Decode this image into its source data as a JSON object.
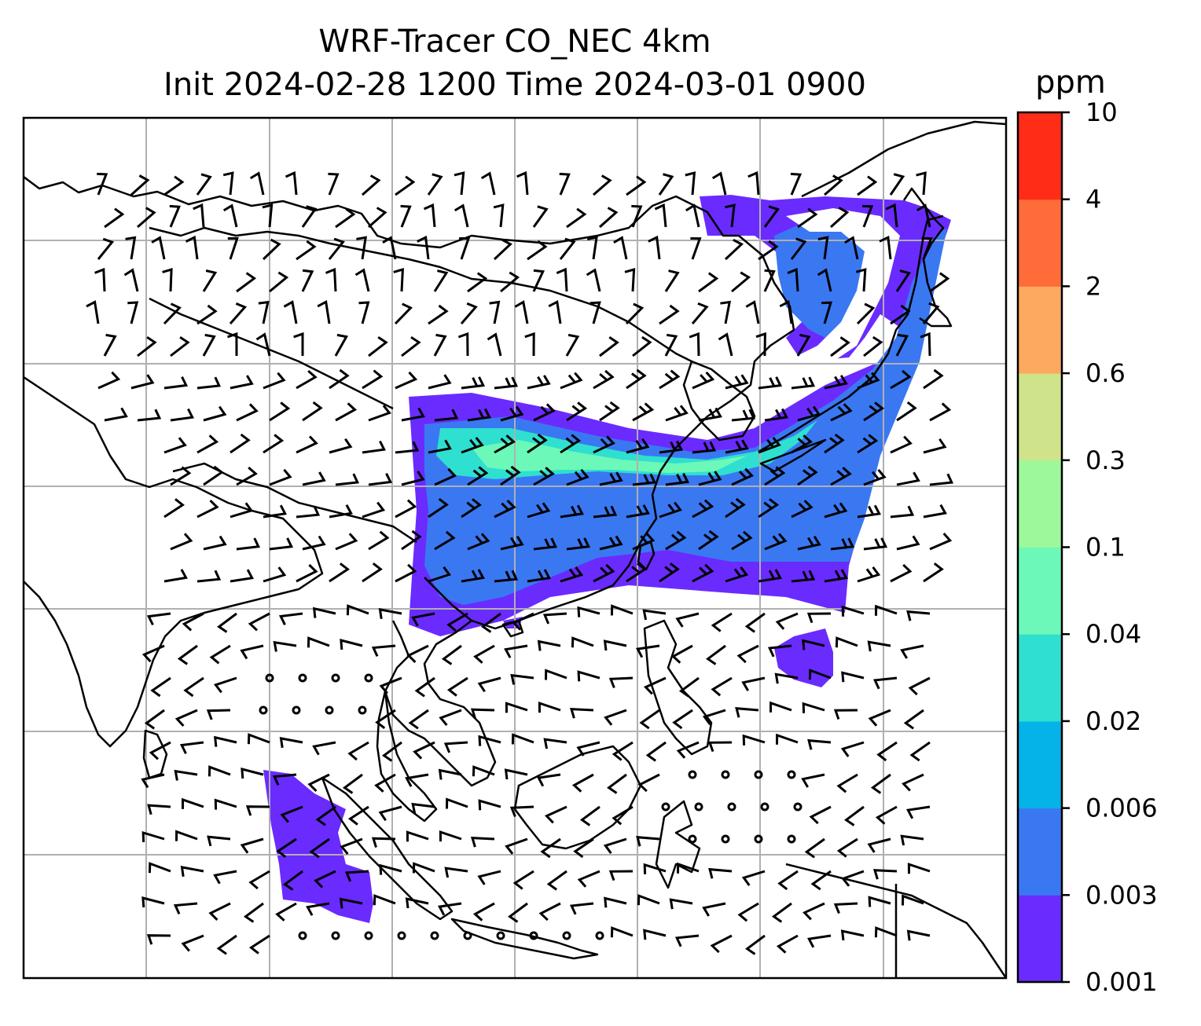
{
  "figure": {
    "title_line1": "WRF-Tracer CO_NEC 4km",
    "title_line2": "Init 2024-02-28 1200 Time 2024-03-01 0900"
  },
  "colorbar": {
    "unit_label": "ppm",
    "levels": [
      "0.001",
      "0.003",
      "0.006",
      "0.02",
      "0.04",
      "0.1",
      "0.3",
      "0.6",
      "2",
      "4",
      "10"
    ],
    "colors": [
      "#6a2bff",
      "#3a78f2",
      "#06b3e8",
      "#2fdfcf",
      "#6cf8b8",
      "#9cf89a",
      "#cfe38a",
      "#fdaa60",
      "#ff6c3a",
      "#ff2c17"
    ]
  },
  "map": {
    "region": "Asia / Western Pacific",
    "gridlines": true,
    "coastline_color": "#000000",
    "grid_color": "#b0b0b0",
    "plume_colors": {
      "low": "#6a2bff",
      "mid": "#3a78f2",
      "high": "#2fdfcf",
      "peak": "#6cf8b8"
    }
  }
}
